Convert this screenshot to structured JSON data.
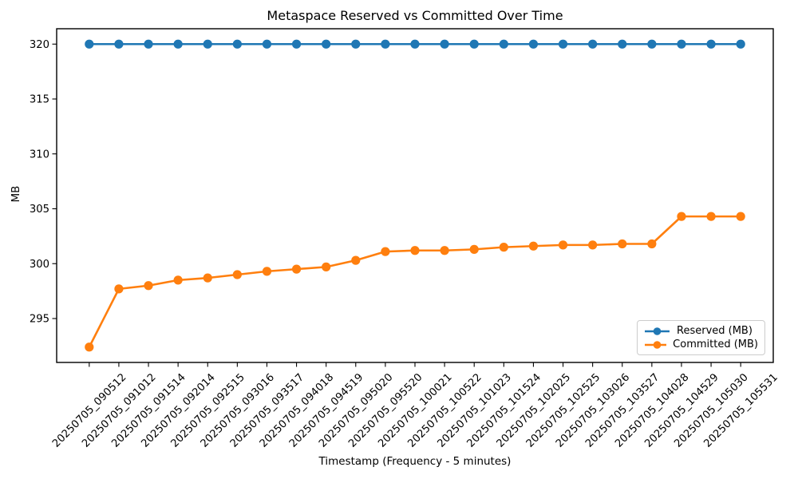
{
  "chart_data": {
    "type": "line",
    "title": "Metaspace Reserved vs Committed Over Time",
    "xlabel": "Timestamp (Frequency - 5 minutes)",
    "ylabel": "MB",
    "categories": [
      "20250705_090512",
      "20250705_091012",
      "20250705_091514",
      "20250705_092014",
      "20250705_092515",
      "20250705_093016",
      "20250705_093517",
      "20250705_094018",
      "20250705_094519",
      "20250705_095020",
      "20250705_095520",
      "20250705_100021",
      "20250705_100522",
      "20250705_101023",
      "20250705_101524",
      "20250705_102025",
      "20250705_102525",
      "20250705_103026",
      "20250705_103527",
      "20250705_104028",
      "20250705_104529",
      "20250705_105030",
      "20250705_105531"
    ],
    "series": [
      {
        "name": "Reserved (MB)",
        "color": "#1f77b4",
        "values": [
          320,
          320,
          320,
          320,
          320,
          320,
          320,
          320,
          320,
          320,
          320,
          320,
          320,
          320,
          320,
          320,
          320,
          320,
          320,
          320,
          320,
          320,
          320
        ]
      },
      {
        "name": "Committed (MB)",
        "color": "#ff7f0e",
        "values": [
          292.4,
          297.7,
          298.0,
          298.5,
          298.7,
          299.0,
          299.3,
          299.5,
          299.7,
          300.3,
          301.1,
          301.2,
          301.2,
          301.3,
          301.5,
          301.6,
          301.7,
          301.7,
          301.8,
          301.8,
          304.3,
          304.3,
          304.3
        ]
      }
    ],
    "y_ticks": [
      295,
      300,
      305,
      310,
      315,
      320
    ],
    "ylim": [
      291.0,
      321.4
    ],
    "x_tick_rotation": 45,
    "grid": false,
    "legend_position": "lower right",
    "marker": "circle"
  }
}
